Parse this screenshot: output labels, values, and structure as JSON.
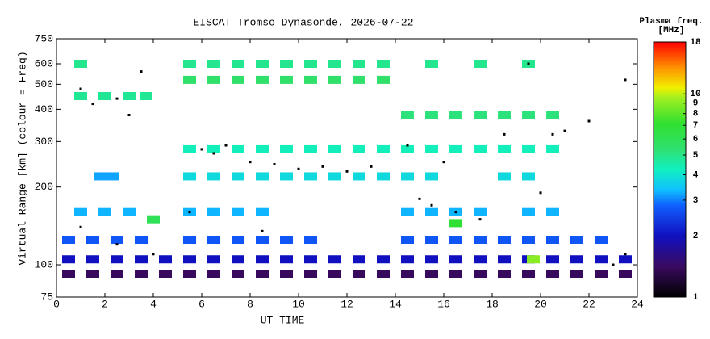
{
  "chart_data": {
    "type": "scatter",
    "title": "EISCAT Tromso Dynasonde, 2026-07-22",
    "x_label": "UT TIME",
    "y_label": "Virtual Range [km] (colour = Freq)",
    "colorbar_title": "Plasma freq.",
    "colorbar_unit": "[MHz]",
    "xlim": [
      0,
      24
    ],
    "xticks": [
      0,
      2,
      4,
      6,
      8,
      10,
      12,
      14,
      16,
      18,
      20,
      22,
      24
    ],
    "ylim": [
      75,
      750
    ],
    "yticks": [
      75,
      100,
      200,
      300,
      400,
      500,
      600,
      750
    ],
    "y_log": true,
    "clim": [
      1,
      18
    ],
    "cticks": [
      1,
      2,
      3,
      4,
      5,
      6,
      7,
      8,
      9,
      10,
      18
    ],
    "c_log": true,
    "points": {
      "x": [
        0.5,
        1.5,
        2.5,
        3.5,
        4.5,
        5.5,
        6.5,
        7.5,
        8.5,
        9.5,
        10.5,
        11.5,
        12.5,
        13.5,
        14.5,
        15.5,
        16.5,
        17.5,
        18.5,
        19.5,
        20.5,
        21.5,
        22.5,
        23.5,
        0.5,
        1.5,
        2.5,
        3.5,
        4.5,
        5.5,
        6.5,
        7.5,
        8.5,
        9.5,
        10.5,
        11.5,
        12.5,
        13.5,
        14.5,
        15.5,
        16.5,
        17.5,
        18.5,
        19.5,
        20.5,
        21.5,
        22.5,
        23.5,
        0.5,
        1.5,
        2.5,
        3.5,
        5.5,
        6.5,
        7.5,
        8.5,
        9.5,
        10.5,
        14.5,
        15.5,
        16.5,
        17.5,
        18.5,
        19.5,
        20.5,
        21.5,
        22.5,
        1,
        2,
        3,
        5.5,
        6.5,
        7.5,
        8.5,
        14.5,
        15.5,
        16.5,
        17.5,
        19.5,
        20.5,
        5.5,
        6.5,
        7.5,
        8.5,
        9.5,
        10.5,
        11.5,
        12.5,
        13.5,
        14.5,
        15.5,
        18.5,
        19.5,
        5.5,
        6.5,
        7.5,
        8.5,
        9.5,
        10.5,
        11.5,
        12.5,
        13.5,
        14.5,
        15.5,
        16.5,
        17.5,
        18.5,
        19.5,
        20.5,
        1,
        2,
        3,
        3.7,
        1.8,
        2.3,
        5.5,
        6.5,
        7.5,
        8.5,
        9.5,
        10.5,
        11.5,
        12.5,
        13.5,
        14.5,
        15.5,
        16.5,
        17.5,
        18.5,
        19.5,
        20.5,
        1,
        5.5,
        6.5,
        7.5,
        8.5,
        9.5,
        10.5,
        11.5,
        12.5,
        13.5,
        15.5,
        17.5,
        19.5,
        19.7,
        16.5,
        4
      ],
      "y": [
        92,
        92,
        92,
        92,
        92,
        92,
        92,
        92,
        92,
        92,
        92,
        92,
        92,
        92,
        92,
        92,
        92,
        92,
        92,
        92,
        92,
        92,
        92,
        92,
        105,
        105,
        105,
        105,
        105,
        105,
        105,
        105,
        105,
        105,
        105,
        105,
        105,
        105,
        105,
        105,
        105,
        105,
        105,
        105,
        105,
        105,
        105,
        105,
        125,
        125,
        125,
        125,
        125,
        125,
        125,
        125,
        125,
        125,
        125,
        125,
        125,
        125,
        125,
        125,
        125,
        125,
        125,
        160,
        160,
        160,
        160,
        160,
        160,
        160,
        160,
        160,
        160,
        160,
        160,
        160,
        220,
        220,
        220,
        220,
        220,
        220,
        220,
        220,
        220,
        220,
        220,
        220,
        220,
        280,
        280,
        280,
        280,
        280,
        280,
        280,
        280,
        280,
        280,
        280,
        280,
        280,
        280,
        280,
        280,
        450,
        450,
        450,
        450,
        220,
        220,
        520,
        520,
        520,
        520,
        520,
        520,
        520,
        520,
        520,
        380,
        380,
        380,
        380,
        380,
        380,
        380,
        600,
        600,
        600,
        600,
        600,
        600,
        600,
        600,
        600,
        600,
        600,
        600,
        600,
        105,
        145,
        150
      ],
      "freq": [
        1.4,
        1.4,
        1.4,
        1.4,
        1.4,
        1.4,
        1.4,
        1.4,
        1.4,
        1.4,
        1.4,
        1.4,
        1.4,
        1.4,
        1.4,
        1.4,
        1.4,
        1.4,
        1.4,
        1.4,
        1.4,
        1.4,
        1.4,
        1.4,
        2,
        2,
        2,
        2,
        2,
        2,
        2,
        2,
        2,
        2,
        2,
        2,
        2,
        2,
        2,
        2,
        2,
        2,
        2,
        2,
        2,
        2,
        2,
        2,
        2.7,
        2.7,
        2.7,
        2.7,
        2.7,
        2.7,
        2.7,
        2.7,
        2.7,
        2.7,
        2.7,
        2.7,
        2.7,
        2.7,
        2.7,
        2.7,
        2.7,
        2.7,
        2.7,
        3.3,
        3.3,
        3.3,
        3.3,
        3.3,
        3.3,
        3.3,
        3.3,
        3.3,
        3.3,
        3.3,
        3.3,
        3.3,
        3.8,
        3.8,
        3.8,
        3.8,
        3.8,
        3.8,
        3.8,
        3.8,
        3.8,
        3.8,
        3.8,
        3.8,
        3.8,
        4.3,
        4.3,
        4.3,
        4.3,
        4.3,
        4.3,
        4.3,
        4.3,
        4.3,
        4.3,
        4.3,
        4.3,
        4.3,
        4.3,
        4.3,
        4.3,
        4.8,
        4.8,
        4.8,
        4.8,
        3.2,
        3.2,
        5.5,
        5.5,
        5.5,
        5.5,
        5.5,
        5.5,
        5.5,
        5.5,
        5.5,
        5.2,
        5.2,
        5.2,
        5.2,
        5.2,
        5.2,
        5.2,
        4.9,
        4.9,
        4.9,
        4.9,
        4.9,
        4.9,
        4.9,
        4.9,
        4.9,
        4.9,
        4.9,
        4.9,
        4.9,
        9,
        7,
        6
      ]
    },
    "markers": {
      "color": "#000000",
      "x": [
        1,
        1.5,
        2.5,
        3,
        3.5,
        6,
        6.5,
        7,
        8,
        9,
        10,
        11,
        12,
        13,
        14.5,
        15,
        15.5,
        16,
        16.5,
        17.5,
        18.5,
        19.5,
        20,
        20.5,
        21,
        22,
        23.5,
        23,
        1,
        2.5,
        4,
        5.5,
        8.5,
        23.5
      ],
      "y": [
        480,
        420,
        440,
        380,
        560,
        280,
        270,
        290,
        250,
        245,
        235,
        240,
        230,
        240,
        290,
        180,
        170,
        250,
        160,
        150,
        320,
        600,
        190,
        320,
        330,
        360,
        110,
        100,
        140,
        120,
        110,
        160,
        135,
        520
      ]
    }
  }
}
